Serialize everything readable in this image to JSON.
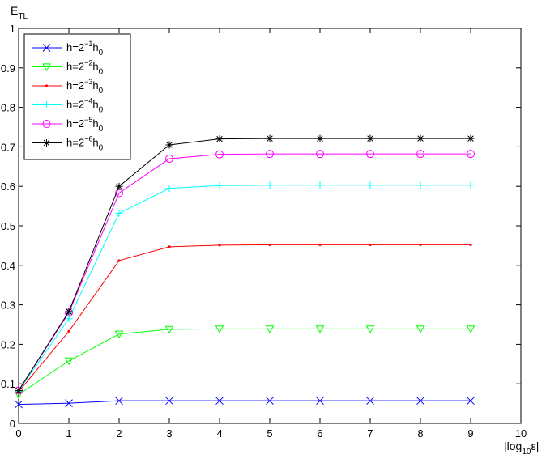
{
  "chart_data": {
    "type": "line",
    "title": "",
    "ylabel": {
      "base": "E",
      "sub": "TL"
    },
    "xlabel": {
      "pre": "|log",
      "sub": "10",
      "post": "ε|"
    },
    "xlim": [
      0,
      10
    ],
    "ylim": [
      0,
      1
    ],
    "xticks": [
      "0",
      "1",
      "2",
      "3",
      "4",
      "5",
      "6",
      "7",
      "8",
      "9",
      "10"
    ],
    "yticks": [
      "0",
      "0.1",
      "0.2",
      "0.3",
      "0.4",
      "0.5",
      "0.6",
      "0.7",
      "0.8",
      "0.9",
      "1"
    ],
    "grid": false,
    "legend_position": "top-left",
    "x": [
      0,
      1,
      2,
      3,
      4,
      5,
      6,
      7,
      8,
      9
    ],
    "series": [
      {
        "name": {
          "pre": "h=2",
          "exp": "−1",
          "post": "h",
          "sub": "0"
        },
        "color": "#0000ff",
        "marker": "x",
        "values": [
          0.048,
          0.051,
          0.057,
          0.057,
          0.057,
          0.057,
          0.057,
          0.057,
          0.057,
          0.057
        ]
      },
      {
        "name": {
          "pre": "h=2",
          "exp": "−2",
          "post": "h",
          "sub": "0"
        },
        "color": "#00ff00",
        "marker": "triangle-down",
        "values": [
          0.073,
          0.158,
          0.226,
          0.238,
          0.239,
          0.239,
          0.239,
          0.239,
          0.239,
          0.239
        ]
      },
      {
        "name": {
          "pre": "h=2",
          "exp": "−3",
          "post": "h",
          "sub": "0"
        },
        "color": "#ff0000",
        "marker": "dot",
        "values": [
          0.08,
          0.233,
          0.412,
          0.447,
          0.451,
          0.452,
          0.452,
          0.452,
          0.452,
          0.452
        ]
      },
      {
        "name": {
          "pre": "h=2",
          "exp": "−4",
          "post": "h",
          "sub": "0"
        },
        "color": "#00ffff",
        "marker": "plus",
        "values": [
          0.082,
          0.265,
          0.532,
          0.595,
          0.602,
          0.603,
          0.603,
          0.603,
          0.603,
          0.603
        ]
      },
      {
        "name": {
          "pre": "h=2",
          "exp": "−5",
          "post": "h",
          "sub": "0"
        },
        "color": "#ff00ff",
        "marker": "circle",
        "values": [
          0.083,
          0.28,
          0.583,
          0.67,
          0.681,
          0.682,
          0.682,
          0.682,
          0.682,
          0.682
        ]
      },
      {
        "name": {
          "pre": "h=2",
          "exp": "−6",
          "post": "h",
          "sub": "0"
        },
        "color": "#000000",
        "marker": "star",
        "values": [
          0.083,
          0.283,
          0.6,
          0.705,
          0.72,
          0.721,
          0.721,
          0.721,
          0.721,
          0.721
        ]
      }
    ]
  }
}
